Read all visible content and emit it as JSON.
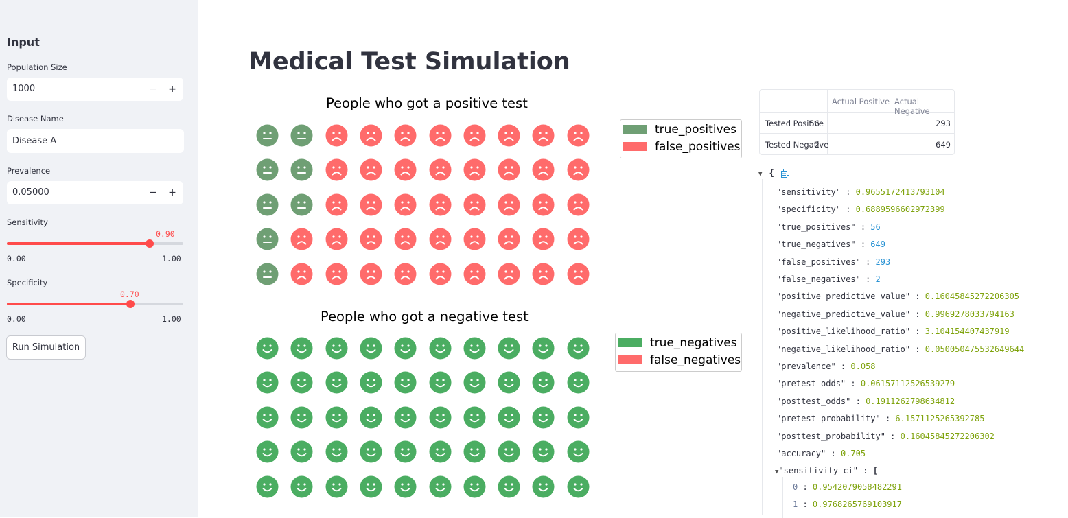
{
  "sidebar": {
    "header": "Input",
    "population": {
      "label": "Population Size",
      "value": "1000"
    },
    "disease": {
      "label": "Disease Name",
      "value": "Disease A"
    },
    "prevalence": {
      "label": "Prevalence",
      "value": "0.05000"
    },
    "sensitivity": {
      "label": "Sensitivity",
      "value_label": "0.90",
      "value": 0.9,
      "min": "0.00",
      "max": "1.00"
    },
    "specificity": {
      "label": "Specificity",
      "value_label": "0.70",
      "value": 0.7,
      "min": "0.00",
      "max": "1.00"
    },
    "run_label": "Run Simulation"
  },
  "title": "Medical Test Simulation",
  "colors": {
    "true_positive": "#6f9f74",
    "false": "#ff6b6b",
    "true_negative": "#4bad62"
  },
  "charts": {
    "positive": {
      "title": "People who got a positive test",
      "legend": [
        "true_positives",
        "false_positives"
      ],
      "grid": [
        [
          "tp",
          "tp",
          "fp",
          "fp",
          "fp",
          "fp",
          "fp",
          "fp",
          "fp",
          "fp"
        ],
        [
          "tp",
          "tp",
          "fp",
          "fp",
          "fp",
          "fp",
          "fp",
          "fp",
          "fp",
          "fp"
        ],
        [
          "tp",
          "tp",
          "fp",
          "fp",
          "fp",
          "fp",
          "fp",
          "fp",
          "fp",
          "fp"
        ],
        [
          "tp",
          "fp",
          "fp",
          "fp",
          "fp",
          "fp",
          "fp",
          "fp",
          "fp",
          "fp"
        ],
        [
          "tp",
          "fp",
          "fp",
          "fp",
          "fp",
          "fp",
          "fp",
          "fp",
          "fp",
          "fp"
        ]
      ]
    },
    "negative": {
      "title": "People who got a negative test",
      "legend": [
        "true_negatives",
        "false_negatives"
      ],
      "grid": [
        [
          "tn",
          "tn",
          "tn",
          "tn",
          "tn",
          "tn",
          "tn",
          "tn",
          "tn",
          "tn"
        ],
        [
          "tn",
          "tn",
          "tn",
          "tn",
          "tn",
          "tn",
          "tn",
          "tn",
          "tn",
          "tn"
        ],
        [
          "tn",
          "tn",
          "tn",
          "tn",
          "tn",
          "tn",
          "tn",
          "tn",
          "tn",
          "tn"
        ],
        [
          "tn",
          "tn",
          "tn",
          "tn",
          "tn",
          "tn",
          "tn",
          "tn",
          "tn",
          "tn"
        ],
        [
          "tn",
          "tn",
          "tn",
          "tn",
          "tn",
          "tn",
          "tn",
          "tn",
          "tn",
          "tn"
        ]
      ]
    }
  },
  "table": {
    "headers": [
      "Actual Positive",
      "Actual Negative"
    ],
    "rows": [
      {
        "label": "Tested Positive",
        "values": [
          "56",
          "293"
        ]
      },
      {
        "label": "Tested Negative",
        "values": [
          "2",
          "649"
        ]
      }
    ]
  },
  "json_view": {
    "open": "{",
    "entries": [
      {
        "key": "\"sensitivity\"",
        "value": "0.9655172413793104",
        "kind": "flt"
      },
      {
        "key": "\"specificity\"",
        "value": "0.6889596602972399",
        "kind": "flt"
      },
      {
        "key": "\"true_positives\"",
        "value": "56",
        "kind": "num"
      },
      {
        "key": "\"true_negatives\"",
        "value": "649",
        "kind": "num"
      },
      {
        "key": "\"false_positives\"",
        "value": "293",
        "kind": "num"
      },
      {
        "key": "\"false_negatives\"",
        "value": "2",
        "kind": "num"
      },
      {
        "key": "\"positive_predictive_value\"",
        "value": "0.16045845272206305",
        "kind": "flt"
      },
      {
        "key": "\"negative_predictive_value\"",
        "value": "0.9969278033794163",
        "kind": "flt"
      },
      {
        "key": "\"positive_likelihood_ratio\"",
        "value": "3.104154407437919",
        "kind": "flt"
      },
      {
        "key": "\"negative_likelihood_ratio\"",
        "value": "0.050050475532649644",
        "kind": "flt"
      },
      {
        "key": "\"prevalence\"",
        "value": "0.058",
        "kind": "flt"
      },
      {
        "key": "\"pretest_odds\"",
        "value": "0.06157112526539279",
        "kind": "flt"
      },
      {
        "key": "\"posttest_odds\"",
        "value": "0.1911262798634812",
        "kind": "flt"
      },
      {
        "key": "\"pretest_probability\"",
        "value": "6.1571125265392785",
        "kind": "flt"
      },
      {
        "key": "\"posttest_probability\"",
        "value": "0.16045845272206302",
        "kind": "flt"
      },
      {
        "key": "\"accuracy\"",
        "value": "0.705",
        "kind": "flt"
      }
    ],
    "ci": {
      "key": "\"sensitivity_ci\"",
      "open": "[",
      "items": [
        {
          "index": "0",
          "value": "0.9542079058482291"
        },
        {
          "index": "1",
          "value": "0.9768265769103917"
        }
      ]
    }
  }
}
